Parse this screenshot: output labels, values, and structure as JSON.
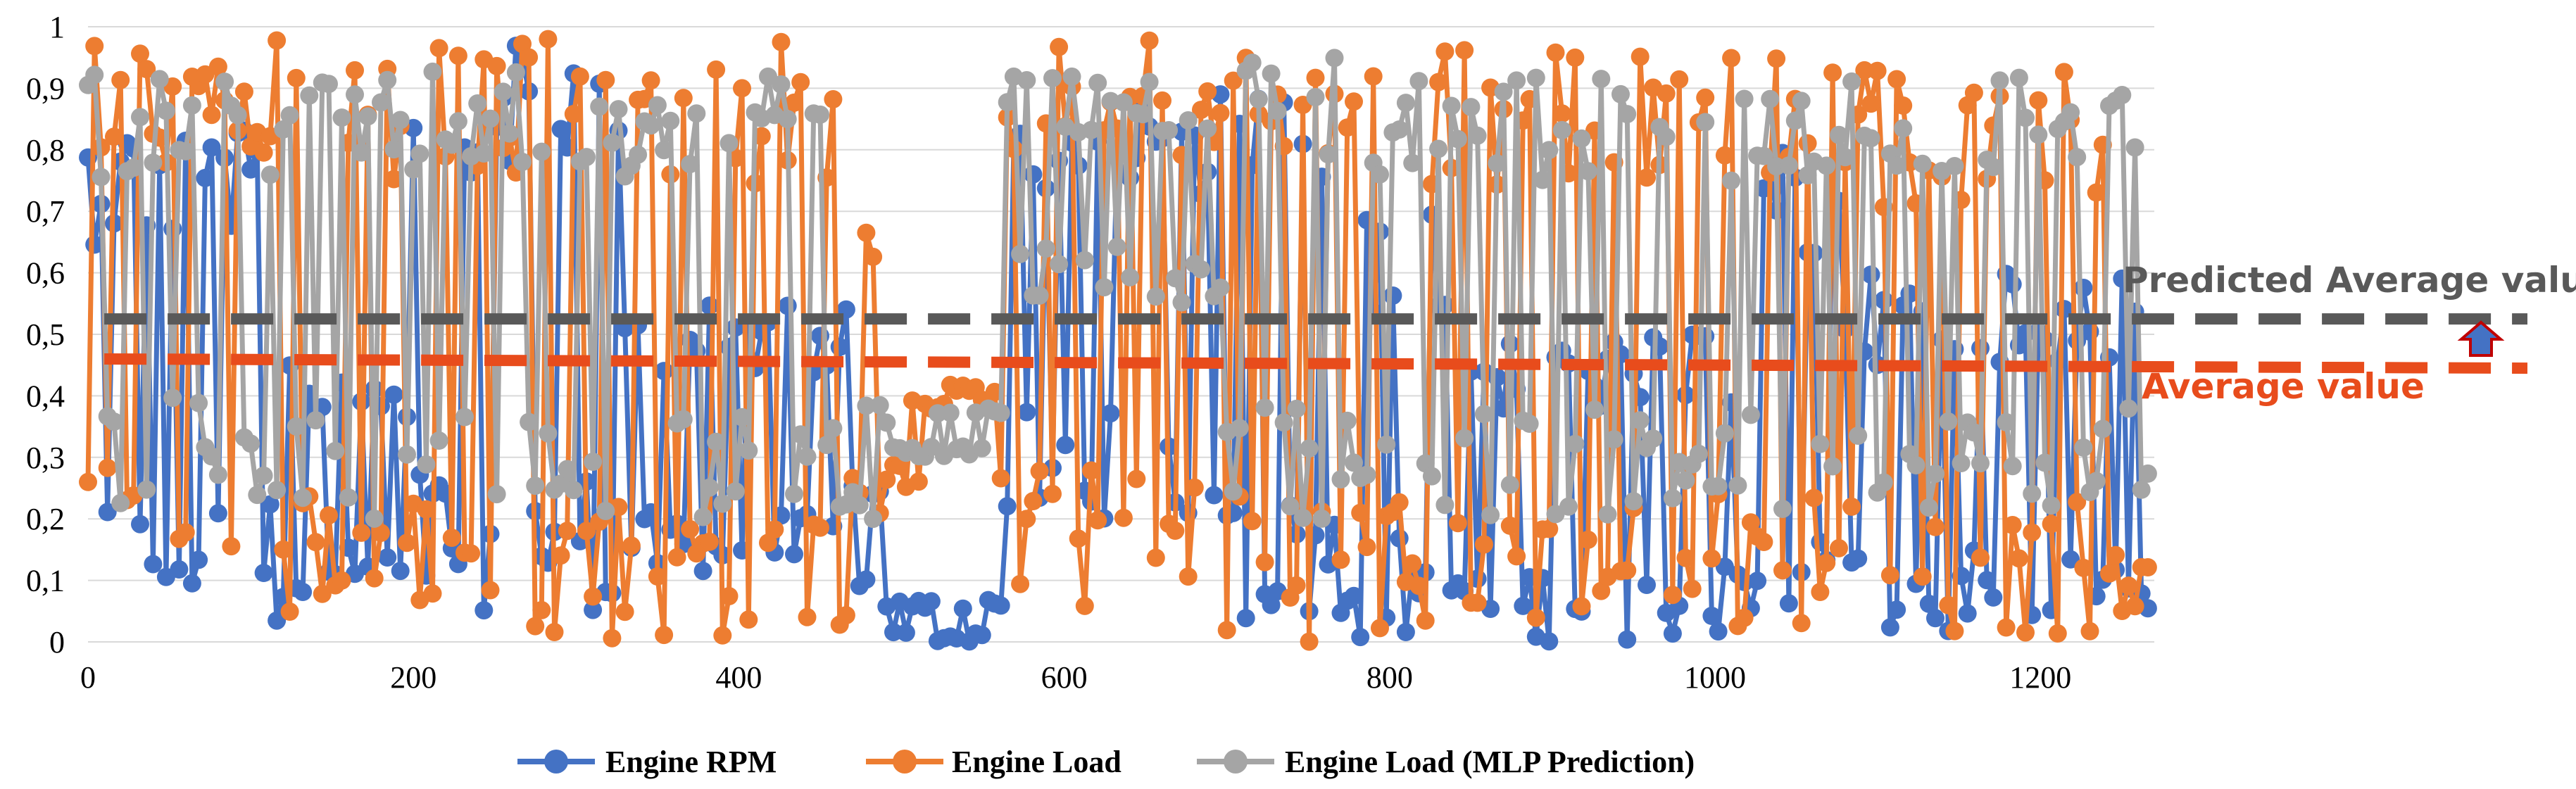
{
  "chart_data": {
    "type": "line",
    "xlim": [
      0,
      1270
    ],
    "ylim": [
      0,
      1
    ],
    "x_ticks": [
      "0",
      "200",
      "400",
      "600",
      "800",
      "1000",
      "1200"
    ],
    "y_ticks": [
      "0",
      "0,1",
      "0,2",
      "0,3",
      "0,4",
      "0,5",
      "0,6",
      "0,7",
      "0,8",
      "0,9",
      "1"
    ],
    "grid": "horizontal",
    "legend_position": "bottom",
    "series": [
      {
        "name": "Engine RPM",
        "color": "#4472C4",
        "marker": "circle"
      },
      {
        "name": "Engine Load",
        "color": "#ED7D31",
        "marker": "circle"
      },
      {
        "name": "Engine Load (MLP Prediction)",
        "color": "#A5A5A5",
        "marker": "circle"
      }
    ],
    "segments": [
      {
        "x": [
          0,
          120
        ],
        "rpm": [
          0.03,
          0.85
        ],
        "load": [
          0.15,
          0.98
        ],
        "pred": [
          0.22,
          0.93
        ]
      },
      {
        "x": [
          120,
          200
        ],
        "rpm": [
          0.06,
          0.45
        ],
        "load": [
          0.04,
          0.97
        ],
        "pred": [
          0.2,
          0.92
        ]
      },
      {
        "x": [
          200,
          330
        ],
        "rpm": [
          0.05,
          1.0
        ],
        "load": [
          0.0,
          0.98
        ],
        "pred": [
          0.2,
          0.93
        ]
      },
      {
        "x": [
          330,
          470
        ],
        "rpm": [
          0.1,
          0.55
        ],
        "load": [
          0.0,
          0.98
        ],
        "pred": [
          0.2,
          0.92
        ]
      },
      {
        "x": [
          470,
          495
        ],
        "rpm": [
          0.05,
          0.3
        ],
        "load": [
          0.2,
          0.7
        ],
        "pred": [
          0.2,
          0.4
        ]
      },
      {
        "x": [
          495,
          565
        ],
        "rpm": [
          0.0,
          0.07
        ],
        "load": [
          0.25,
          0.42
        ],
        "pred": [
          0.3,
          0.38
        ]
      },
      {
        "x": [
          565,
          700
        ],
        "rpm": [
          0.2,
          0.9
        ],
        "load": [
          0.05,
          0.99
        ],
        "pred": [
          0.55,
          0.92
        ]
      },
      {
        "x": [
          700,
          770
        ],
        "rpm": [
          0.02,
          0.9
        ],
        "load": [
          0.0,
          1.0
        ],
        "pred": [
          0.2,
          0.95
        ]
      },
      {
        "x": [
          770,
          850
        ],
        "rpm": [
          0.0,
          0.7
        ],
        "load": [
          0.0,
          0.98
        ],
        "pred": [
          0.2,
          0.93
        ]
      },
      {
        "x": [
          850,
          1030
        ],
        "rpm": [
          0.0,
          0.5
        ],
        "load": [
          0.01,
          0.97
        ],
        "pred": [
          0.2,
          0.92
        ]
      },
      {
        "x": [
          1030,
          1080
        ],
        "rpm": [
          0.0,
          0.8
        ],
        "load": [
          0.02,
          0.95
        ],
        "pred": [
          0.2,
          0.93
        ]
      },
      {
        "x": [
          1080,
          1270
        ],
        "rpm": [
          0.0,
          0.6
        ],
        "load": [
          0.01,
          0.93
        ],
        "pred": [
          0.2,
          0.92
        ]
      }
    ],
    "reference_lines": [
      {
        "label": "Predicted Average value",
        "y": 0.525,
        "color": "#595959"
      },
      {
        "label": "Average value",
        "y": 0.46,
        "y_end": 0.445,
        "color": "#E84C1C"
      }
    ]
  }
}
